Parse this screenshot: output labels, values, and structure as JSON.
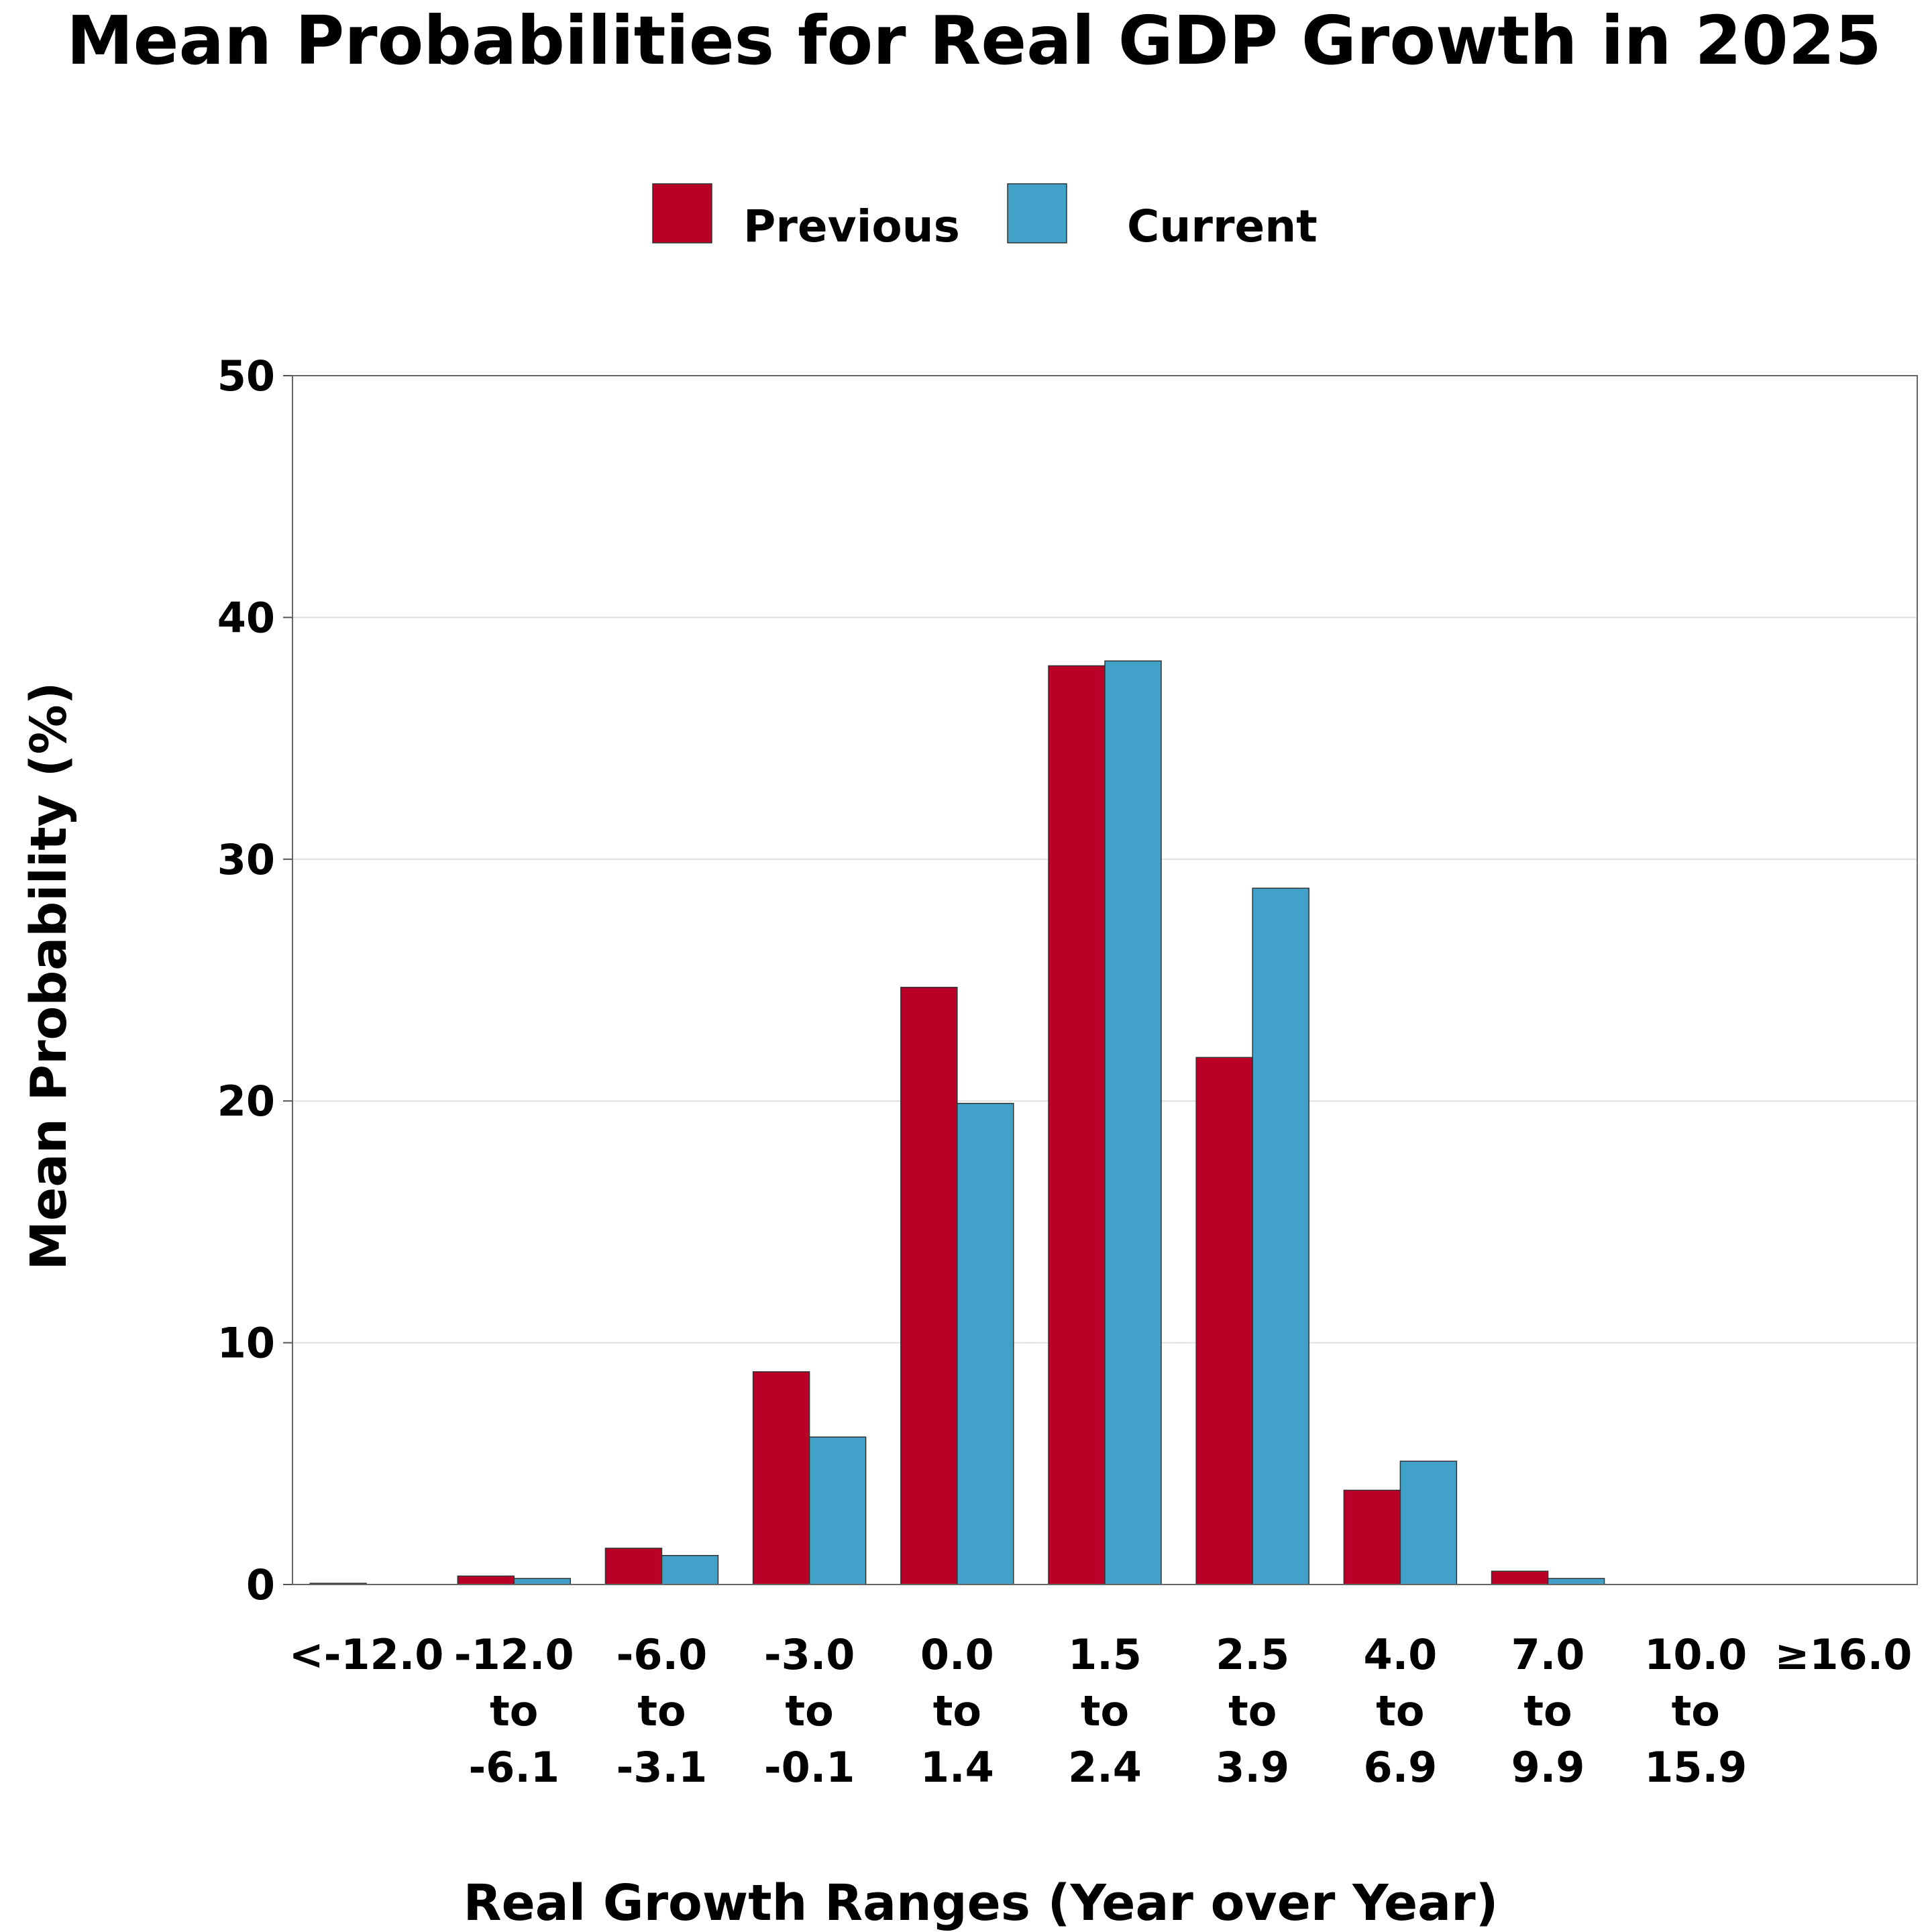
{
  "chart_data": {
    "type": "bar",
    "title": "Mean Probabilities for Real GDP Growth in 2025",
    "xlabel": "Real Growth Ranges (Year over Year)",
    "ylabel": "Mean Probability (%)",
    "ylim": [
      0,
      50
    ],
    "yticks": [
      0,
      10,
      20,
      30,
      40,
      50
    ],
    "grid": true,
    "legend_position": "top-center",
    "categories": [
      "<-12.0",
      "-12.0 to -6.1",
      "-6.0 to -3.1",
      "-3.0 to -0.1",
      "0.0 to 1.4",
      "1.5 to 2.4",
      "2.5 to 3.9",
      "4.0 to 6.9",
      "7.0 to 9.9",
      "10.0 to 15.9",
      "≥16.0"
    ],
    "category_label_lines": [
      [
        "<-12.0"
      ],
      [
        "-12.0",
        "to",
        "-6.1"
      ],
      [
        "-6.0",
        "to",
        "-3.1"
      ],
      [
        "-3.0",
        "to",
        "-0.1"
      ],
      [
        "0.0",
        "to",
        "1.4"
      ],
      [
        "1.5",
        "to",
        "2.4"
      ],
      [
        "2.5",
        "to",
        "3.9"
      ],
      [
        "4.0",
        "to",
        "6.9"
      ],
      [
        "7.0",
        "to",
        "9.9"
      ],
      [
        "10.0",
        "to",
        "15.9"
      ],
      [
        "≥16.0"
      ]
    ],
    "series": [
      {
        "name": "Previous",
        "color": "#BA0026",
        "values": [
          0.05,
          0.35,
          1.5,
          8.8,
          24.7,
          38.0,
          21.8,
          3.9,
          0.55,
          0.0,
          0.0
        ]
      },
      {
        "name": "Current",
        "color": "#42A1C9",
        "values": [
          0.0,
          0.25,
          1.2,
          6.1,
          19.9,
          38.2,
          28.8,
          5.1,
          0.25,
          0.0,
          0.0
        ]
      }
    ]
  }
}
